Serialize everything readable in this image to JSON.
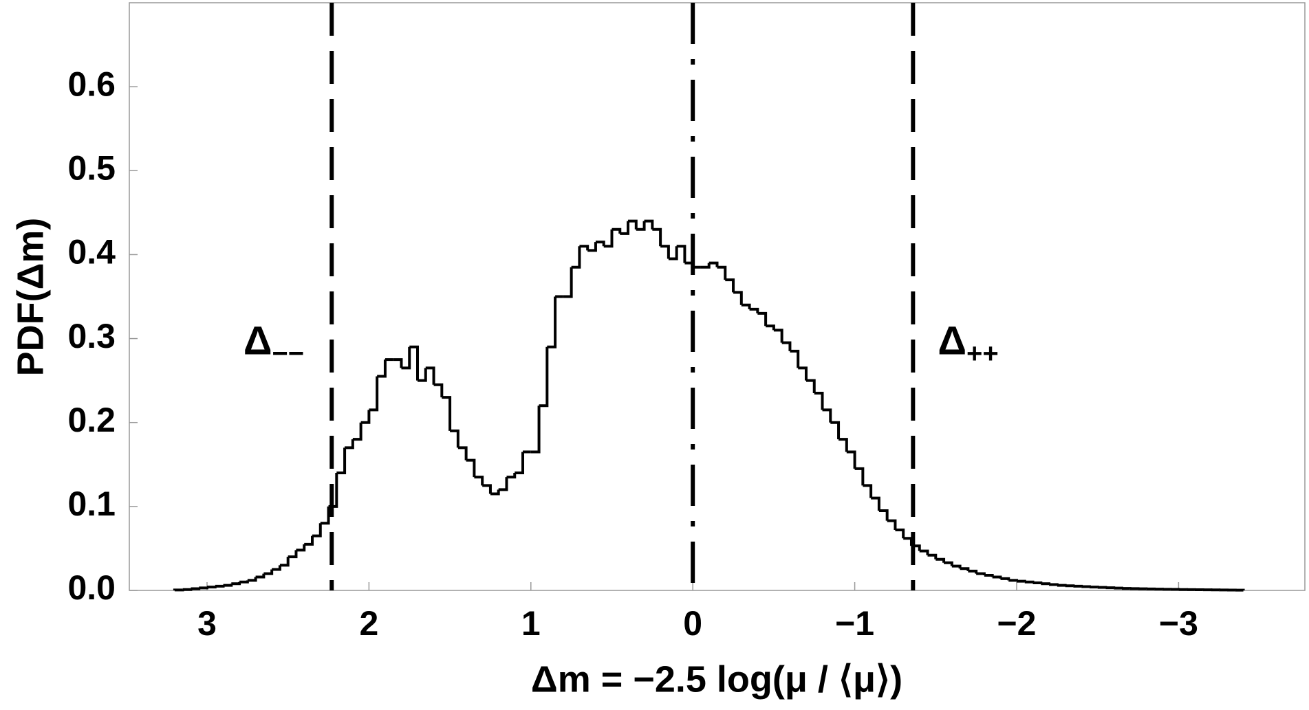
{
  "chart_data": {
    "type": "histogram",
    "xlabel": "Δm = −2.5 log(μ / ⟨μ⟩)",
    "ylabel": "PDF(Δm)",
    "xlim": [
      3.48,
      -3.78
    ],
    "ylim": [
      0,
      0.7
    ],
    "x_reversed": true,
    "xticks": [
      3,
      2,
      1,
      {
        "value": 0,
        "label": "0"
      },
      {
        "value": -1,
        "label": "−1"
      },
      {
        "value": -2,
        "label": "−2"
      },
      {
        "value": -3,
        "label": "−3"
      }
    ],
    "yticks": [
      {
        "value": 0,
        "label": "0.0"
      },
      0.1,
      0.2,
      0.3,
      0.4,
      0.5,
      0.6
    ],
    "color": "#000000",
    "bins": [
      -3.4,
      -3.35,
      -3.3,
      -3.25,
      -3.2,
      -3.15,
      -3.1,
      -3.05,
      -3.0,
      -2.95,
      -2.9,
      -2.85,
      -2.8,
      -2.75,
      -2.7,
      -2.65,
      -2.6,
      -2.55,
      -2.5,
      -2.45,
      -2.4,
      -2.35,
      -2.3,
      -2.25,
      -2.2,
      -2.15,
      -2.1,
      -2.05,
      -2.0,
      -1.95,
      -1.9,
      -1.85,
      -1.8,
      -1.75,
      -1.7,
      -1.65,
      -1.6,
      -1.55,
      -1.5,
      -1.45,
      -1.4,
      -1.35,
      -1.3,
      -1.25,
      -1.2,
      -1.15,
      -1.1,
      -1.05,
      -1.0,
      -0.95,
      -0.9,
      -0.85,
      -0.8,
      -0.75,
      -0.7,
      -0.65,
      -0.6,
      -0.55,
      -0.5,
      -0.45,
      -0.4,
      -0.35,
      -0.3,
      -0.25,
      -0.2,
      -0.15,
      -0.1,
      -0.05,
      0.0,
      0.05,
      0.1,
      0.15,
      0.2,
      0.25,
      0.3,
      0.35,
      0.4,
      0.45,
      0.5,
      0.55,
      0.6,
      0.65,
      0.7,
      0.75,
      0.8,
      0.85,
      0.9,
      0.95,
      1.0,
      1.05,
      1.1,
      1.15,
      1.2,
      1.25,
      1.3,
      1.35,
      1.4,
      1.45,
      1.5,
      1.55,
      1.6,
      1.65,
      1.7,
      1.75,
      1.8,
      1.85,
      1.9,
      1.95,
      2.0,
      2.05,
      2.1,
      2.15,
      2.2,
      2.25,
      2.3,
      2.35,
      2.4,
      2.45,
      2.5,
      2.55,
      2.6,
      2.65,
      2.7,
      2.75,
      2.8,
      2.85,
      2.9,
      2.95,
      3.0,
      3.05,
      3.1,
      3.15,
      3.2
    ],
    "values": [
      0.0003,
      0.0004,
      0.0005,
      0.0006,
      0.0007,
      0.0008,
      0.0009,
      0.001,
      0.0012,
      0.0013,
      0.0015,
      0.0017,
      0.0019,
      0.0021,
      0.0024,
      0.0028,
      0.0032,
      0.0036,
      0.004,
      0.0045,
      0.005,
      0.0055,
      0.006,
      0.007,
      0.008,
      0.009,
      0.01,
      0.011,
      0.012,
      0.014,
      0.016,
      0.018,
      0.02,
      0.023,
      0.026,
      0.029,
      0.033,
      0.037,
      0.042,
      0.047,
      0.053,
      0.062,
      0.072,
      0.083,
      0.095,
      0.11,
      0.125,
      0.145,
      0.165,
      0.18,
      0.2,
      0.215,
      0.235,
      0.25,
      0.265,
      0.285,
      0.295,
      0.31,
      0.315,
      0.33,
      0.335,
      0.34,
      0.355,
      0.37,
      0.385,
      0.39,
      0.385,
      0.385,
      0.39,
      0.41,
      0.395,
      0.41,
      0.43,
      0.44,
      0.43,
      0.44,
      0.425,
      0.43,
      0.41,
      0.415,
      0.405,
      0.41,
      0.385,
      0.35,
      0.35,
      0.29,
      0.22,
      0.165,
      0.165,
      0.14,
      0.135,
      0.12,
      0.115,
      0.125,
      0.135,
      0.155,
      0.17,
      0.19,
      0.23,
      0.245,
      0.265,
      0.25,
      0.29,
      0.265,
      0.275,
      0.275,
      0.255,
      0.215,
      0.2,
      0.18,
      0.17,
      0.14,
      0.1,
      0.08,
      0.065,
      0.055,
      0.048,
      0.04,
      0.03,
      0.025,
      0.02,
      0.016,
      0.012,
      0.01,
      0.008,
      0.006,
      0.005,
      0.004,
      0.003,
      0.002,
      0.001,
      0.0005
    ],
    "vlines": [
      {
        "x": 2.23,
        "style": "dashed",
        "label": "Δ",
        "sub": "−−"
      },
      {
        "x": 0,
        "style": "dashdot"
      },
      {
        "x": -1.36,
        "style": "dashed",
        "label": "Δ",
        "sub": "++"
      }
    ]
  }
}
